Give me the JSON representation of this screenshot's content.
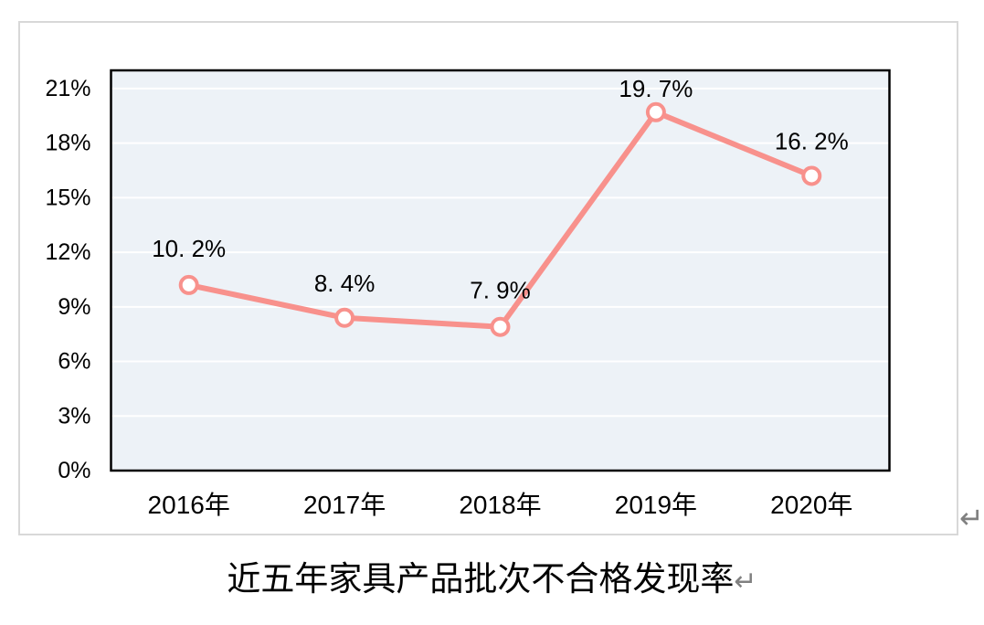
{
  "caption": {
    "text": "近五年家具产品批次不合格发现率"
  },
  "marks": {
    "paragraph_mark": "↵"
  },
  "colors": {
    "line": "#F8918C",
    "marker_fill": "#FFFFFF",
    "plot_bg": "#EDF2F7",
    "plot_border": "#000000",
    "gridline": "#FFFFFF",
    "frame_border": "#D8D8D8",
    "text": "#000000",
    "paragraph_mark": "#808080"
  },
  "chart_data": {
    "type": "line",
    "title": "近五年家具产品批次不合格发现率",
    "xlabel": "",
    "ylabel": "",
    "categories": [
      "2016年",
      "2017年",
      "2018年",
      "2019年",
      "2020年"
    ],
    "values": [
      10.2,
      8.4,
      7.9,
      19.7,
      16.2
    ],
    "data_labels": [
      "10. 2%",
      "8. 4%",
      "7. 9%",
      "19. 7%",
      "16. 2%"
    ],
    "y_ticks": [
      "0%",
      "3%",
      "6%",
      "9%",
      "12%",
      "15%",
      "18%",
      "21%"
    ],
    "y_tick_values": [
      0,
      3,
      6,
      9,
      12,
      15,
      18,
      21
    ],
    "ylim": [
      0,
      22
    ],
    "grid": true,
    "legend": "none",
    "label_offsets": [
      -40,
      -38,
      -40,
      -26,
      -38
    ],
    "line_width": 6,
    "marker_radius": 9,
    "marker_stroke_width": 4
  }
}
